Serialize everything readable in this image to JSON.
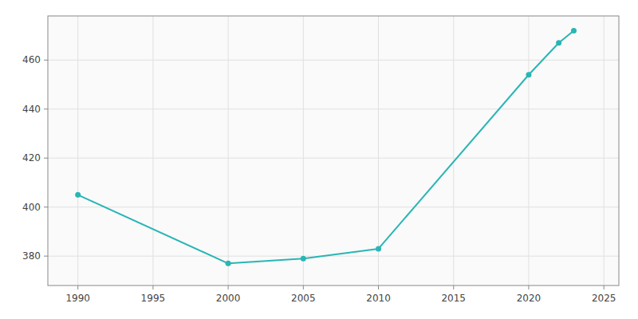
{
  "chart_data": {
    "type": "line",
    "x": [
      1990,
      2000,
      2005,
      2010,
      2020,
      2022,
      2023
    ],
    "values": [
      405,
      377,
      379,
      383,
      454,
      467,
      472
    ],
    "color": "#2ab5b5",
    "marker": "circle",
    "xlim": [
      1988,
      2026
    ],
    "ylim": [
      368,
      478
    ],
    "xticks": [
      1990,
      1995,
      2000,
      2005,
      2010,
      2015,
      2020,
      2025
    ],
    "yticks": [
      380,
      400,
      420,
      440,
      460
    ],
    "grid": true
  }
}
